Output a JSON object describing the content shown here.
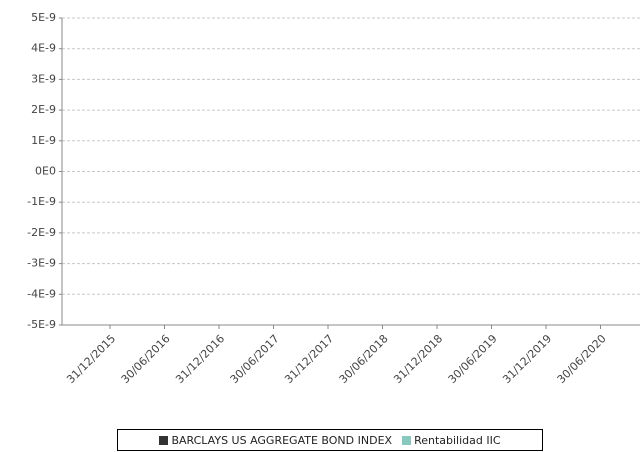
{
  "chart_data": {
    "type": "bar",
    "categories": [
      "31/12/2015",
      "30/06/2016",
      "31/12/2016",
      "30/06/2017",
      "31/12/2017",
      "30/06/2018",
      "31/12/2018",
      "30/06/2019",
      "31/12/2019",
      "30/06/2020"
    ],
    "series": [
      {
        "name": "BARCLAYS US AGGREGATE BOND INDEX",
        "color": "#333333",
        "values": [
          0,
          0,
          0,
          0,
          0,
          0,
          0,
          0,
          0,
          0
        ]
      },
      {
        "name": "Rentabilidad IIC",
        "color": "#88c8bf",
        "values": [
          0,
          0,
          0,
          0,
          0,
          0,
          0,
          0,
          0,
          0
        ]
      }
    ],
    "ylim": [
      -5e-09,
      5e-09
    ],
    "yticks": [
      {
        "value": 5e-09,
        "label": "5E-9"
      },
      {
        "value": 4e-09,
        "label": "4E-9"
      },
      {
        "value": 3e-09,
        "label": "3E-9"
      },
      {
        "value": 2e-09,
        "label": "2E-9"
      },
      {
        "value": 1e-09,
        "label": "1E-9"
      },
      {
        "value": 0,
        "label": "0E0"
      },
      {
        "value": -1e-09,
        "label": "-1E-9"
      },
      {
        "value": -2e-09,
        "label": "-2E-9"
      },
      {
        "value": -3e-09,
        "label": "-3E-9"
      },
      {
        "value": -4e-09,
        "label": "-4E-9"
      },
      {
        "value": -5e-09,
        "label": "-5E-9"
      }
    ],
    "grid": true
  }
}
